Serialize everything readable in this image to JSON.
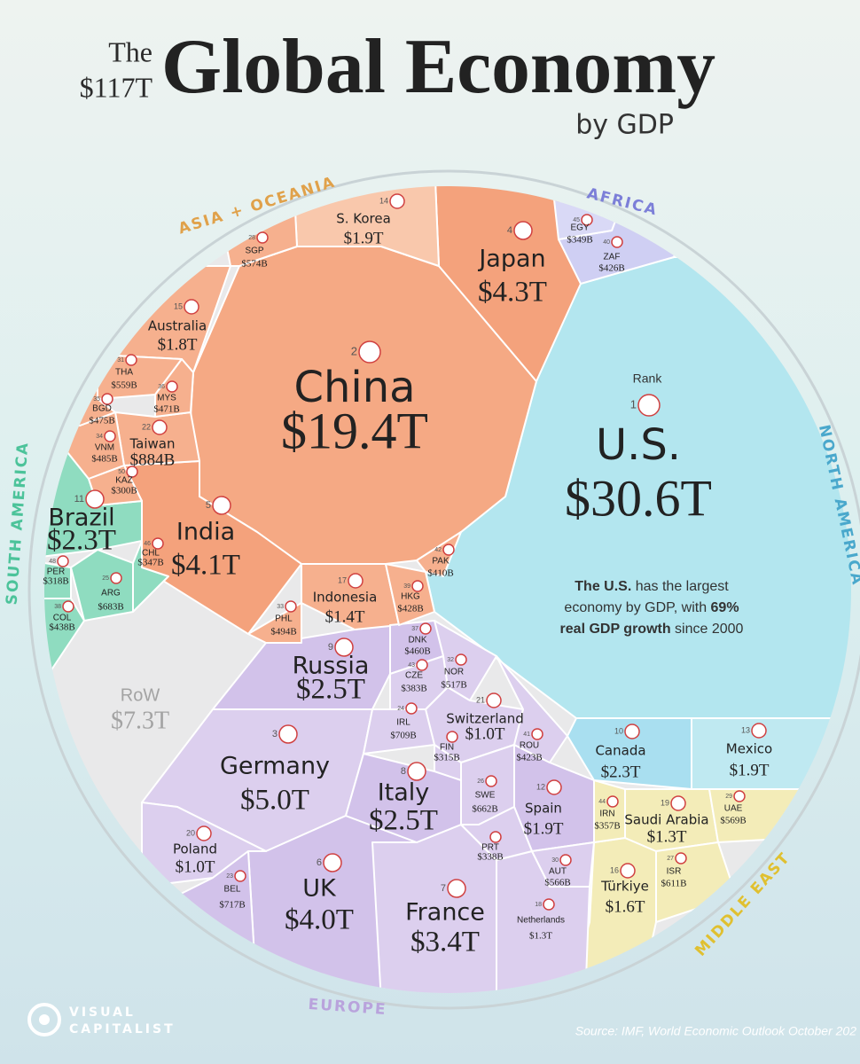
{
  "header": {
    "the": "The",
    "total": "$117T",
    "title": "Global Economy",
    "subtitle": "by GDP"
  },
  "regions": [
    "ASIA + OCEANIA",
    "AFRICA",
    "NORTH AMERICA",
    "MIDDLE EAST",
    "EUROPE",
    "SOUTH AMERICA"
  ],
  "rank_label": "Rank",
  "countries": [
    {
      "rank": 1,
      "name": "U.S.",
      "gdp": "$30.6T"
    },
    {
      "rank": 2,
      "name": "China",
      "gdp": "$19.4T"
    },
    {
      "rank": 3,
      "name": "Germany",
      "gdp": "$5.0T"
    },
    {
      "rank": 4,
      "name": "Japan",
      "gdp": "$4.3T"
    },
    {
      "rank": 5,
      "name": "India",
      "gdp": "$4.1T"
    },
    {
      "rank": 6,
      "name": "UK",
      "gdp": "$4.0T"
    },
    {
      "rank": 7,
      "name": "France",
      "gdp": "$3.4T"
    },
    {
      "rank": 8,
      "name": "Italy",
      "gdp": "$2.5T"
    },
    {
      "rank": 9,
      "name": "Russia",
      "gdp": "$2.5T"
    },
    {
      "rank": 10,
      "name": "Canada",
      "gdp": "$2.3T"
    },
    {
      "rank": 11,
      "name": "Brazil",
      "gdp": "$2.3T"
    },
    {
      "rank": 12,
      "name": "Spain",
      "gdp": "$1.9T"
    },
    {
      "rank": 13,
      "name": "Mexico",
      "gdp": "$1.9T"
    },
    {
      "rank": 14,
      "name": "S. Korea",
      "gdp": "$1.9T"
    },
    {
      "rank": 15,
      "name": "Australia",
      "gdp": "$1.8T"
    },
    {
      "rank": 16,
      "name": "Türkiye",
      "gdp": "$1.6T"
    },
    {
      "rank": 17,
      "name": "Indonesia",
      "gdp": "$1.4T"
    },
    {
      "rank": 18,
      "name": "Netherlands",
      "gdp": "$1.3T"
    },
    {
      "rank": 19,
      "name": "Saudi Arabia",
      "gdp": "$1.3T"
    },
    {
      "rank": 20,
      "name": "Poland",
      "gdp": "$1.0T"
    },
    {
      "rank": 21,
      "name": "Switzerland",
      "gdp": "$1.0T"
    },
    {
      "rank": 22,
      "name": "Taiwan",
      "gdp": "$884B"
    },
    {
      "rank": 23,
      "name": "BEL",
      "gdp": "$717B"
    },
    {
      "rank": 24,
      "name": "IRL",
      "gdp": "$709B"
    },
    {
      "rank": 25,
      "name": "ARG",
      "gdp": "$683B"
    },
    {
      "rank": 26,
      "name": "SWE",
      "gdp": "$662B"
    },
    {
      "rank": 27,
      "name": "ISR",
      "gdp": "$611B"
    },
    {
      "rank": 28,
      "name": "SGP",
      "gdp": "$574B"
    },
    {
      "rank": 29,
      "name": "UAE",
      "gdp": "$569B"
    },
    {
      "rank": 30,
      "name": "AUT",
      "gdp": "$566B"
    },
    {
      "rank": 31,
      "name": "THA",
      "gdp": "$559B"
    },
    {
      "rank": 32,
      "name": "NOR",
      "gdp": "$517B"
    },
    {
      "rank": 33,
      "name": "PHL",
      "gdp": "$494B"
    },
    {
      "rank": 34,
      "name": "VNM",
      "gdp": "$485B"
    },
    {
      "rank": 35,
      "name": "BGD",
      "gdp": "$475B"
    },
    {
      "rank": 36,
      "name": "MYS",
      "gdp": "$471B"
    },
    {
      "rank": 37,
      "name": "DNK",
      "gdp": "$460B"
    },
    {
      "rank": 38,
      "name": "COL",
      "gdp": "$438B"
    },
    {
      "rank": 39,
      "name": "HKG",
      "gdp": "$428B"
    },
    {
      "rank": 40,
      "name": "ZAF",
      "gdp": "$426B"
    },
    {
      "rank": 41,
      "name": "ROU",
      "gdp": "$423B"
    },
    {
      "rank": 42,
      "name": "PAK",
      "gdp": "$410B"
    },
    {
      "rank": 43,
      "name": "CZE",
      "gdp": "$383B"
    },
    {
      "rank": 44,
      "name": "IRN",
      "gdp": "$357B"
    },
    {
      "rank": 45,
      "name": "EGY",
      "gdp": "$349B"
    },
    {
      "rank": 46,
      "name": "CHL",
      "gdp": "$347B"
    },
    {
      "rank": 48,
      "name": "PER",
      "gdp": "$318B"
    },
    {
      "rank": 50,
      "name": "KAZ",
      "gdp": "$300B"
    },
    {
      "name": "FIN",
      "gdp": "$315B"
    },
    {
      "name": "PRT",
      "gdp": "$338B"
    }
  ],
  "rest": {
    "name": "RoW",
    "gdp": "$7.3T"
  },
  "note": {
    "bold1": "The U.S.",
    "text1": " has the largest",
    "text2": "economy by GDP, with ",
    "bold2": "69%",
    "bold3": "real GDP growth",
    "text3": " since 2000"
  },
  "brand": [
    "VISUAL",
    "CAPITALIST"
  ],
  "source": "Source: IMF, World Economic Outlook October 202"
}
